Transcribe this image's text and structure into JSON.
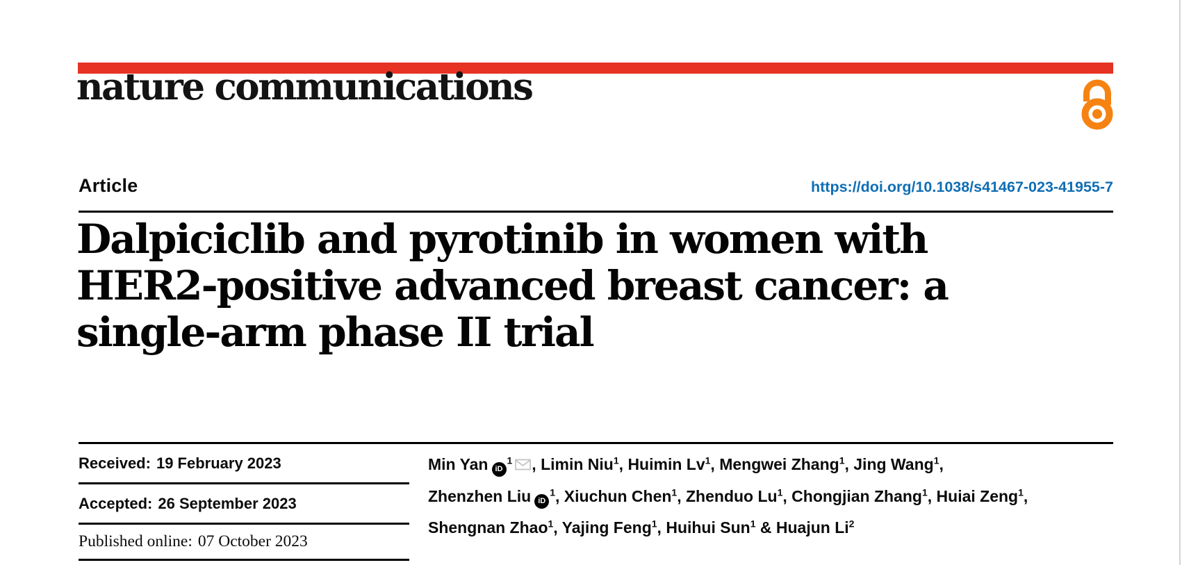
{
  "page": {
    "edge_line_color": "#d4d4d4",
    "background": "#ffffff"
  },
  "masthead": {
    "journal_name": "nature communications",
    "red_bar_color": "#e63323",
    "open_access_icon": "open-access-padlock",
    "open_access_color": "#f68212"
  },
  "article_header": {
    "article_type": "Article",
    "doi_link": "https://doi.org/10.1038/s41467-023-41955-7",
    "doi_color": "#0f6eb4"
  },
  "title": {
    "full": "Dalpiciclib and pyrotinib in women with HER2-positive advanced breast cancer: a single-arm phase II trial",
    "line1": "Dalpiciclib and pyrotinib in women with",
    "line2": "HER2-positive advanced breast cancer: a",
    "line3": "single-arm phase II trial"
  },
  "dates": {
    "rows": [
      {
        "label": "Received:",
        "value": "19 February 2023"
      },
      {
        "label": "Accepted:",
        "value": "26 September 2023"
      },
      {
        "label": "Published online:",
        "value": "07 October 2023"
      }
    ]
  },
  "authors": {
    "orcid_icon_label": "iD",
    "envelope_color": "#c4c4c4",
    "lines": [
      [
        {
          "name": "Min Yan",
          "orcid": true,
          "sup": "1",
          "email": true,
          "sep": ", "
        },
        {
          "name": "Limin Niu",
          "sup": "1",
          "sep": ", "
        },
        {
          "name": "Huimin Lv",
          "sup": "1",
          "sep": ", "
        },
        {
          "name": "Mengwei Zhang",
          "sup": "1",
          "sep": ", "
        },
        {
          "name": "Jing Wang",
          "sup": "1",
          "sep": ","
        }
      ],
      [
        {
          "name": "Zhenzhen Liu",
          "orcid": true,
          "sup": "1",
          "sep": ", "
        },
        {
          "name": "Xiuchun Chen",
          "sup": "1",
          "sep": ", "
        },
        {
          "name": "Zhenduo Lu",
          "sup": "1",
          "sep": ", "
        },
        {
          "name": "Chongjian Zhang",
          "sup": "1",
          "sep": ", "
        },
        {
          "name": "Huiai Zeng",
          "sup": "1",
          "sep": ","
        }
      ],
      [
        {
          "name": "Shengnan Zhao",
          "sup": "1",
          "sep": ", "
        },
        {
          "name": "Yajing Feng",
          "sup": "1",
          "sep": ", "
        },
        {
          "name": "Huihui Sun",
          "sup": "1",
          "sep": " & "
        },
        {
          "name": "Huajun Li",
          "sup": "2",
          "sep": ""
        }
      ]
    ]
  }
}
